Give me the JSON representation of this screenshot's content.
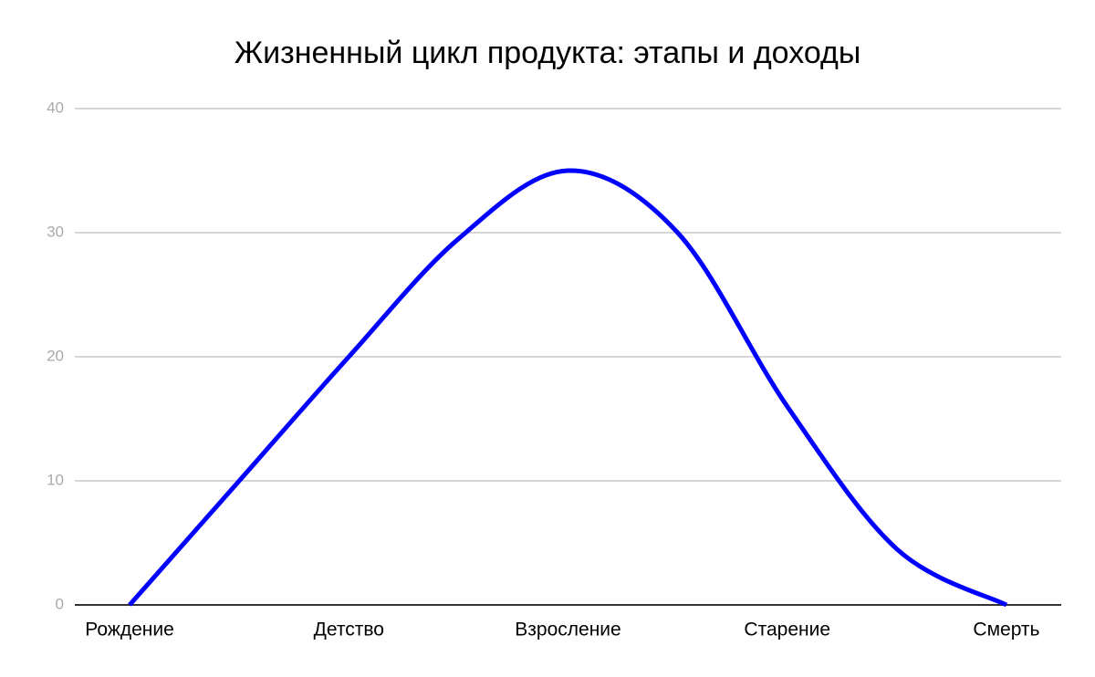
{
  "chart_data": {
    "type": "line",
    "title": "Жизненный цикл продукта: этапы и доходы",
    "categories": [
      "Рождение",
      null,
      "Детство",
      null,
      "Взросление",
      null,
      "Старение",
      null,
      "Смерть"
    ],
    "series": [
      {
        "color": "#0000ff",
        "values": [
          0,
          10,
          20,
          29.5,
          35,
          30,
          16,
          4.5,
          0
        ]
      }
    ],
    "ylim": [
      0,
      40
    ],
    "yticks": [
      0,
      10,
      20,
      30,
      40
    ],
    "grid": true,
    "smooth": true
  }
}
